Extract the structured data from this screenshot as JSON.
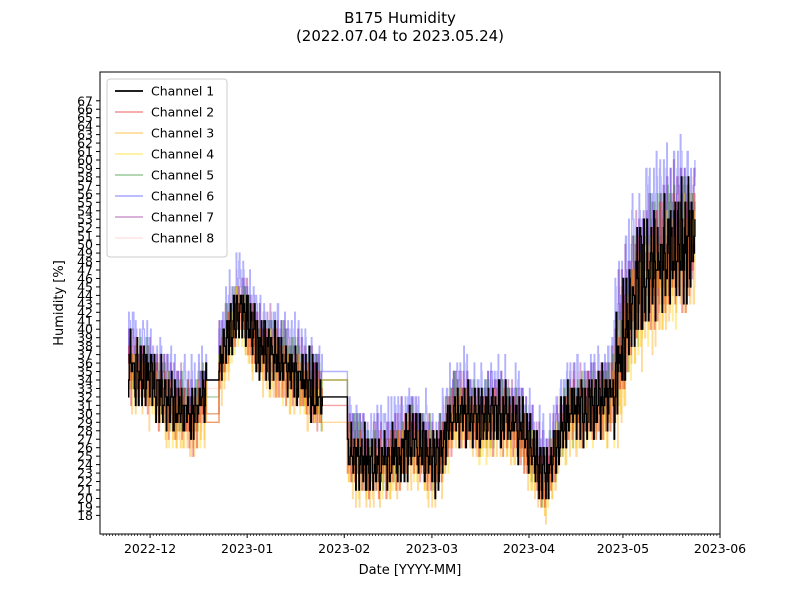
{
  "chart_data": {
    "type": "line",
    "title": "B175 Humidity",
    "subtitle": "(2022.07.04 to 2023.05.24)",
    "xlabel": "Date [YYYY-MM]",
    "ylabel": "Humidity [%]",
    "x_start": "2022-11-15",
    "x_end": "2023-06-01",
    "data_start": "2022-11-24",
    "data_end": "2023-05-24",
    "x_ticks": [
      {
        "date": "2022-12-01",
        "label": "2022-12"
      },
      {
        "date": "2023-01-01",
        "label": "2023-01"
      },
      {
        "date": "2023-02-01",
        "label": "2023-02"
      },
      {
        "date": "2023-03-01",
        "label": "2023-03"
      },
      {
        "date": "2023-04-01",
        "label": "2023-04"
      },
      {
        "date": "2023-05-01",
        "label": "2023-05"
      },
      {
        "date": "2023-06-01",
        "label": "2023-06"
      }
    ],
    "ylim": [
      15.8,
      70.4
    ],
    "y_ticks": [
      18,
      19,
      20,
      21,
      22,
      23,
      24,
      25,
      26,
      27,
      28,
      29,
      30,
      31,
      32,
      33,
      34,
      35,
      36,
      37,
      38,
      39,
      40,
      41,
      42,
      43,
      44,
      45,
      46,
      47,
      48,
      49,
      50,
      51,
      52,
      53,
      54,
      55,
      56,
      57,
      58,
      59,
      60,
      61,
      62,
      63,
      64,
      65,
      66,
      67
    ],
    "grid": false,
    "legend_position": "upper-left",
    "base_profile": {
      "dates": [
        "2022-11-24",
        "2022-12-01",
        "2022-12-08",
        "2022-12-15",
        "2022-12-22",
        "2022-12-29",
        "2023-01-05",
        "2023-01-12",
        "2023-01-19",
        "2023-01-26",
        "2023-02-02",
        "2023-02-09",
        "2023-02-16",
        "2023-02-23",
        "2023-03-02",
        "2023-03-09",
        "2023-03-16",
        "2023-03-23",
        "2023-03-30",
        "2023-04-06",
        "2023-04-13",
        "2023-04-20",
        "2023-04-27",
        "2023-05-04",
        "2023-05-11",
        "2023-05-18",
        "2023-05-24"
      ],
      "values": [
        36,
        34,
        31,
        30,
        34,
        43,
        38,
        36,
        34,
        31,
        26,
        24,
        25,
        27,
        24,
        31,
        29,
        30,
        28,
        22,
        30,
        31,
        32,
        44,
        48,
        50,
        51
      ]
    },
    "series": [
      {
        "name": "Channel 1",
        "color": "#000000",
        "opacity": 1.0,
        "offset": 0.0
      },
      {
        "name": "Channel 2",
        "color": "#e31a1c",
        "opacity": 0.4,
        "offset": -0.5
      },
      {
        "name": "Channel 3",
        "color": "#ffa500",
        "opacity": 0.4,
        "offset": -1.5
      },
      {
        "name": "Channel 4",
        "color": "#ffd700",
        "opacity": 0.4,
        "offset": -1.0
      },
      {
        "name": "Channel 5",
        "color": "#228b22",
        "opacity": 0.4,
        "offset": 0.5
      },
      {
        "name": "Channel 6",
        "color": "#0000ff",
        "opacity": 0.3,
        "offset": 3.0
      },
      {
        "name": "Channel 7",
        "color": "#800080",
        "opacity": 0.35,
        "offset": 1.5
      },
      {
        "name": "Channel 8",
        "color": "#ffb6c1",
        "opacity": 0.35,
        "offset": 0.8
      }
    ]
  }
}
